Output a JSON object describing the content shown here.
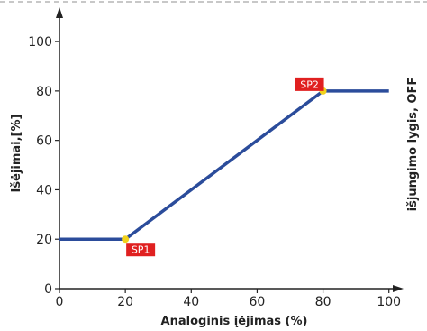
{
  "chart_data": {
    "type": "line",
    "xlabel": "Analoginis  įėjimas (%)",
    "ylabel": "Išėjimai,[%]",
    "right_label": "išjungimo lygis, OFF",
    "xlim": [
      0,
      105
    ],
    "ylim": [
      0,
      115
    ],
    "x_ticks": [
      "0",
      "20",
      "40",
      "60",
      "80",
      "100"
    ],
    "y_ticks": [
      "0",
      "20",
      "40",
      "60",
      "80",
      "100"
    ],
    "grid": false,
    "series": [
      {
        "x": [
          0,
          20,
          80,
          100
        ],
        "y": [
          20,
          20,
          80,
          80
        ]
      }
    ],
    "setpoints": [
      {
        "label": "SP1",
        "x": 20,
        "y": 20
      },
      {
        "label": "SP2",
        "x": 80,
        "y": 80
      }
    ],
    "colors": {
      "line": "#2b4c9b",
      "axis": "#222222",
      "marker": "#f2d21b",
      "label_bg": "#e02020",
      "border_dash": "#c8c8c8"
    }
  }
}
